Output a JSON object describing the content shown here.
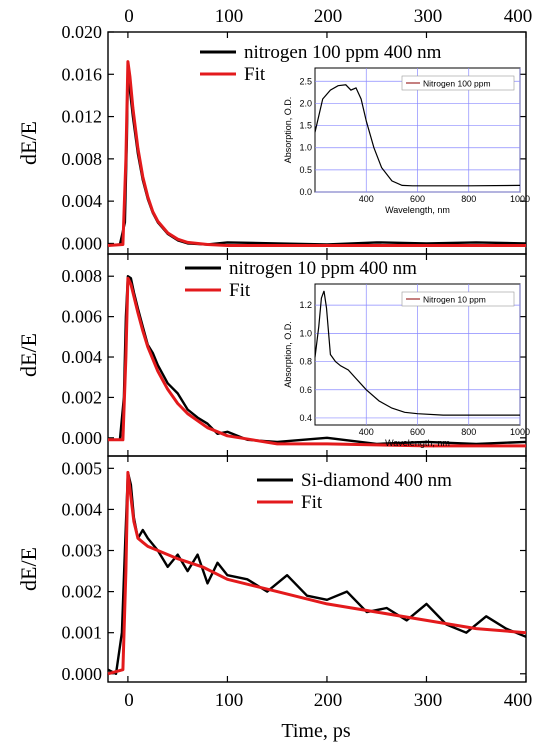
{
  "figure": {
    "xlabel": "Time, ps",
    "x_ticks": [
      "0",
      "100",
      "200",
      "300",
      "400"
    ],
    "x_range": [
      -20,
      400
    ]
  },
  "chart_data": [
    {
      "type": "line",
      "panel": "top",
      "ylabel": "dE/E",
      "ylim": [
        -0.001,
        0.02
      ],
      "y_ticks": [
        "0.000",
        "0.004",
        "0.008",
        "0.012",
        "0.016",
        "0.020"
      ],
      "y_tick_values": [
        0.0,
        0.004,
        0.008,
        0.012,
        0.016,
        0.02
      ],
      "legend": [
        "nitrogen 100 ppm 400 nm",
        "Fit"
      ],
      "series": [
        {
          "name": "nitrogen 100 ppm 400 nm",
          "color": "#000000",
          "x": [
            -20,
            -8,
            -3,
            -1,
            0,
            2,
            5,
            10,
            15,
            20,
            25,
            30,
            40,
            50,
            60,
            80,
            100,
            150,
            200,
            250,
            300,
            350,
            400
          ],
          "y": [
            -0.0002,
            -0.0001,
            0.002,
            0.01,
            0.0165,
            0.0145,
            0.012,
            0.0085,
            0.006,
            0.0042,
            0.0029,
            0.002,
            0.0009,
            0.0003,
            0.0,
            -0.0001,
            0.0001,
            0.0,
            -0.0001,
            0.0001,
            0.0,
            0.0001,
            0.0
          ]
        },
        {
          "name": "Fit",
          "color": "#e31a1c",
          "x": [
            -20,
            -5,
            -2,
            0,
            2,
            5,
            10,
            15,
            20,
            25,
            30,
            40,
            50,
            60,
            80,
            100,
            150,
            200,
            300,
            400
          ],
          "y": [
            -0.0002,
            -0.0001,
            0.008,
            0.0172,
            0.0158,
            0.0128,
            0.009,
            0.0063,
            0.0044,
            0.003,
            0.0021,
            0.001,
            0.0004,
            0.0001,
            -0.0001,
            -0.0002,
            -0.0002,
            -0.0002,
            -0.0002,
            -0.0002
          ]
        }
      ],
      "inset": {
        "legend": "Nitrogen 100 ppm",
        "xlabel": "Wavelength, nm",
        "ylabel": "Absorption, O.D.",
        "x_ticks": [
          "400",
          "600",
          "800",
          "1000"
        ],
        "y_ticks": [
          "0.0",
          "0.5",
          "1.0",
          "1.5",
          "2.0",
          "2.5"
        ],
        "xlim": [
          200,
          1000
        ],
        "ylim": [
          0,
          2.8
        ],
        "x": [
          200,
          230,
          260,
          290,
          320,
          340,
          360,
          380,
          400,
          430,
          460,
          500,
          540,
          580,
          650,
          800,
          1000
        ],
        "y": [
          1.35,
          2.1,
          2.3,
          2.4,
          2.42,
          2.3,
          2.35,
          2.1,
          1.6,
          1.0,
          0.55,
          0.25,
          0.15,
          0.14,
          0.14,
          0.14,
          0.15
        ]
      }
    },
    {
      "type": "line",
      "panel": "middle",
      "ylabel": "dE/E",
      "ylim": [
        -0.0009,
        0.0091
      ],
      "y_ticks": [
        "0.000",
        "0.002",
        "0.004",
        "0.006",
        "0.008"
      ],
      "y_tick_values": [
        0.0,
        0.002,
        0.004,
        0.006,
        0.008
      ],
      "legend": [
        "nitrogen 10 ppm 400 nm",
        "Fit"
      ],
      "series": [
        {
          "name": "nitrogen 10 ppm 400 nm",
          "color": "#000000",
          "x": [
            -20,
            -8,
            -4,
            -2,
            0,
            3,
            6,
            10,
            15,
            20,
            25,
            30,
            40,
            50,
            60,
            70,
            80,
            90,
            100,
            120,
            150,
            200,
            250,
            300,
            350,
            400
          ],
          "y": [
            -0.0001,
            -0.0001,
            0.002,
            0.006,
            0.008,
            0.0079,
            0.0072,
            0.0064,
            0.0055,
            0.0046,
            0.0042,
            0.0036,
            0.0027,
            0.0022,
            0.0014,
            0.001,
            0.0007,
            0.0002,
            0.0003,
            -0.0001,
            -0.0002,
            0.0,
            -0.0003,
            -0.0002,
            -0.0003,
            -0.0002
          ]
        },
        {
          "name": "Fit",
          "color": "#e31a1c",
          "x": [
            -20,
            -5,
            -2,
            0,
            3,
            6,
            10,
            15,
            20,
            30,
            40,
            50,
            60,
            80,
            100,
            150,
            200,
            300,
            400
          ],
          "y": [
            -0.0001,
            -0.0001,
            0.004,
            0.0079,
            0.0076,
            0.007,
            0.0062,
            0.0053,
            0.0045,
            0.0033,
            0.0024,
            0.0017,
            0.0012,
            0.0005,
            0.0001,
            -0.0003,
            -0.0003,
            -0.0004,
            -0.0004
          ]
        }
      ],
      "inset": {
        "legend": "Nitrogen 10 ppm",
        "xlabel": "Wavelength, nm",
        "ylabel": "Absorption, O.D.",
        "x_ticks": [
          "400",
          "600",
          "800",
          "1000"
        ],
        "y_ticks": [
          "0.4",
          "0.6",
          "0.8",
          "1.0",
          "1.2"
        ],
        "xlim": [
          200,
          1000
        ],
        "ylim": [
          0.35,
          1.35
        ],
        "x": [
          200,
          215,
          225,
          235,
          245,
          260,
          280,
          300,
          330,
          360,
          400,
          450,
          500,
          550,
          600,
          700,
          800,
          900,
          1000
        ],
        "y": [
          0.83,
          1.05,
          1.25,
          1.3,
          1.18,
          0.85,
          0.8,
          0.77,
          0.74,
          0.68,
          0.6,
          0.52,
          0.47,
          0.44,
          0.43,
          0.42,
          0.42,
          0.42,
          0.42
        ]
      }
    },
    {
      "type": "line",
      "panel": "bottom",
      "ylabel": "dE/E",
      "ylim": [
        -0.0002,
        0.0053
      ],
      "y_ticks": [
        "0.000",
        "0.001",
        "0.002",
        "0.003",
        "0.004",
        "0.005"
      ],
      "y_tick_values": [
        0.0,
        0.001,
        0.002,
        0.003,
        0.004,
        0.005
      ],
      "legend": [
        "Si-diamond 400 nm",
        "Fit"
      ],
      "series": [
        {
          "name": "Si-diamond 400 nm",
          "color": "#000000",
          "x": [
            -20,
            -12,
            -6,
            -3,
            0,
            3,
            6,
            10,
            15,
            20,
            30,
            40,
            50,
            60,
            70,
            80,
            90,
            100,
            120,
            140,
            160,
            180,
            200,
            220,
            240,
            260,
            280,
            300,
            320,
            340,
            360,
            380,
            400
          ],
          "y": [
            0.0001,
            0.0,
            0.001,
            0.003,
            0.0049,
            0.0046,
            0.0038,
            0.0033,
            0.0035,
            0.0033,
            0.003,
            0.0026,
            0.0029,
            0.0025,
            0.0029,
            0.0022,
            0.0027,
            0.0024,
            0.0023,
            0.002,
            0.0024,
            0.0019,
            0.0018,
            0.002,
            0.0015,
            0.0016,
            0.0013,
            0.0017,
            0.0012,
            0.001,
            0.0014,
            0.0011,
            0.0009
          ]
        },
        {
          "name": "Fit",
          "color": "#e31a1c",
          "x": [
            -20,
            -5,
            -2,
            0,
            3,
            6,
            10,
            15,
            20,
            30,
            50,
            75,
            100,
            150,
            200,
            250,
            300,
            350,
            400
          ],
          "y": [
            0.0,
            0.0001,
            0.0025,
            0.0049,
            0.0043,
            0.0037,
            0.0033,
            0.0032,
            0.0031,
            0.003,
            0.0028,
            0.0026,
            0.0023,
            0.002,
            0.0017,
            0.0015,
            0.0013,
            0.0011,
            0.001
          ]
        }
      ]
    }
  ]
}
